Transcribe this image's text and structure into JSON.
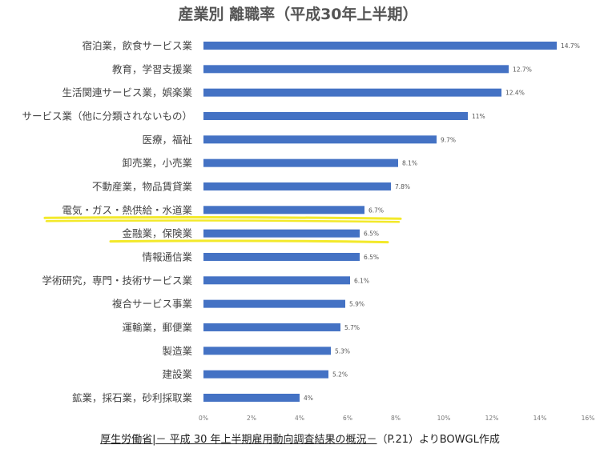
{
  "chart_data": {
    "type": "bar",
    "orientation": "horizontal",
    "title": "産業別 離職率（平成30年上半期）",
    "categories": [
      "宿泊業，飲食サービス業",
      "教育，学習支援業",
      "生活関連サービス業，娯楽業",
      "サービス業（他に分類されないもの）",
      "医療，福祉",
      "卸売業，小売業",
      "不動産業，物品賃貸業",
      "電気・ガス・熱供給・水道業",
      "金融業，保険業",
      "情報通信業",
      "学術研究，専門・技術サービス業",
      "複合サービス事業",
      "運輸業，郵便業",
      "製造業",
      "建設業",
      "鉱業，採石業，砂利採取業"
    ],
    "values": [
      14.7,
      12.7,
      12.4,
      11,
      9.7,
      8.1,
      7.8,
      6.7,
      6.5,
      6.5,
      6.1,
      5.9,
      5.7,
      5.3,
      5.2,
      4
    ],
    "value_labels": [
      "14.7%",
      "12.7%",
      "12.4%",
      "11%",
      "9.7%",
      "8.1%",
      "7.8%",
      "6.7%",
      "6.5%",
      "6.5%",
      "6.1%",
      "5.9%",
      "5.7%",
      "5.3%",
      "5.2%",
      "4%"
    ],
    "xlim": [
      0,
      16
    ],
    "xticks": [
      0,
      2,
      4,
      6,
      8,
      10,
      12,
      14,
      16
    ],
    "xtick_labels": [
      "0%",
      "2%",
      "4%",
      "6%",
      "8%",
      "10%",
      "12%",
      "14%",
      "16%"
    ],
    "grid": false,
    "bar_color": "#4472c4",
    "highlighted_categories": [
      "電気・ガス・熱供給・水道業",
      "金融業，保険業"
    ],
    "highlight_color": "#f3e92a"
  },
  "source": {
    "link_text": "厚生労働省|－ 平成 30 年上半期雇用動向調査結果の概況－",
    "suffix": "（P.21）よりBOWGL作成"
  }
}
